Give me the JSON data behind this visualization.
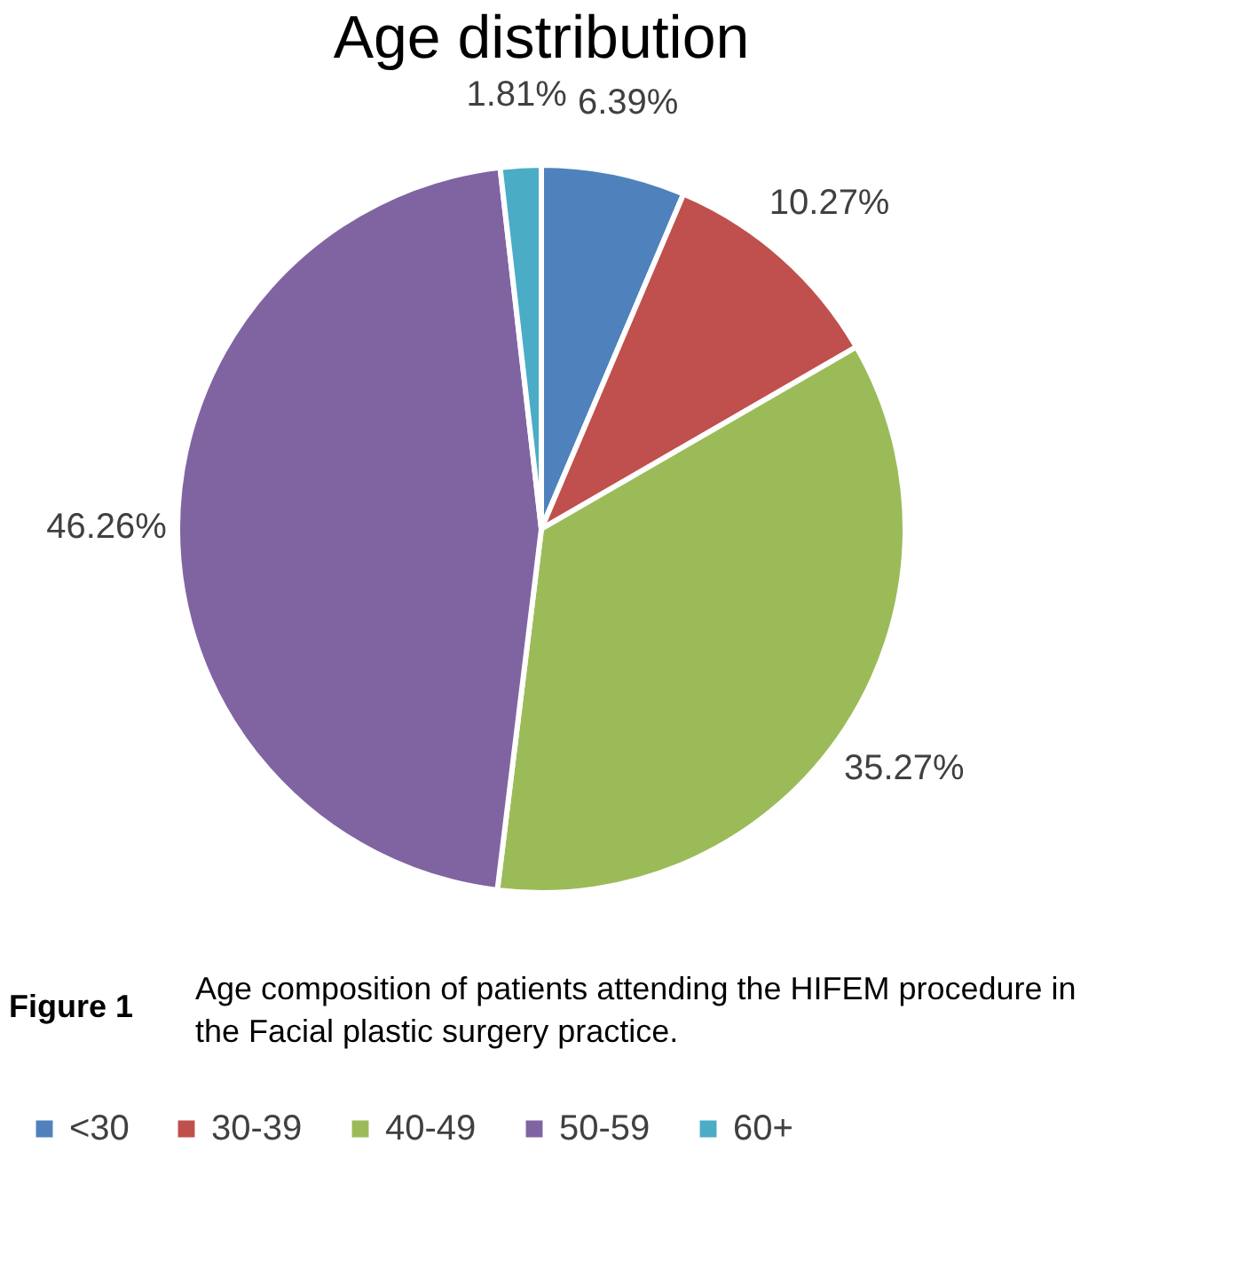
{
  "chart_data": {
    "type": "pie",
    "title": "Age distribution",
    "categories": [
      "<30",
      "30-39",
      "40-49",
      "50-59",
      "60+"
    ],
    "values": [
      6.39,
      10.27,
      35.27,
      46.26,
      1.81
    ],
    "colors": [
      "#4f81bd",
      "#c0504d",
      "#9bbb59",
      "#8064a2",
      "#4bacc6"
    ],
    "value_labels": [
      "6.39%",
      "10.27%",
      "35.27%",
      "46.26%",
      "1.81%"
    ],
    "legend": "bottom",
    "annotations": [
      "Figure 1",
      "Age composition of patients attending the HIFEM procedure in the Facial plastic surgery practice."
    ]
  }
}
